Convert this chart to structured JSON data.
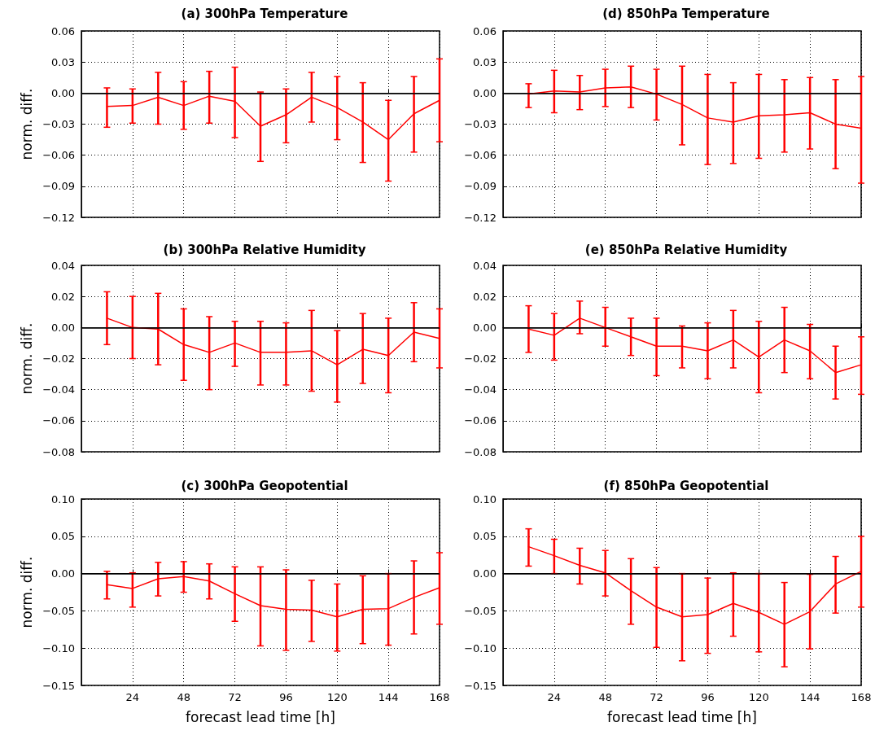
{
  "chart_data": [
    {
      "type": "line",
      "title": "(a) 300hPa Temperature",
      "ylabel": "norm. diff.",
      "tick_labels": "y",
      "grid": true,
      "marker": "none",
      "line_style": "solid",
      "xlim": [
        0,
        168
      ],
      "xticks": [
        24,
        48,
        72,
        96,
        120,
        144,
        168
      ],
      "ylim": [
        -0.12,
        0.06
      ],
      "yticks": [
        {
          "value": -0.12,
          "label": "−0.12"
        },
        {
          "value": -0.09,
          "label": "−0.09"
        },
        {
          "value": -0.06,
          "label": "−0.06"
        },
        {
          "value": -0.03,
          "label": "−0.03"
        },
        {
          "value": 0,
          "label": "0.00"
        },
        {
          "value": 0.03,
          "label": "0.03"
        },
        {
          "value": 0.06,
          "label": "0.06"
        }
      ],
      "ref_lines": [
        {
          "axis": "y",
          "value": 0,
          "color": "#000000"
        }
      ],
      "series": [
        {
          "color": "#ff0000",
          "x": [
            12,
            24,
            36,
            48,
            60,
            72,
            84,
            96,
            108,
            120,
            132,
            144,
            156,
            168
          ],
          "values": [
            -0.013,
            -0.012,
            -0.004,
            -0.012,
            -0.003,
            -0.008,
            -0.032,
            -0.021,
            -0.004,
            -0.014,
            -0.028,
            -0.045,
            -0.02,
            -0.007
          ],
          "errors": [
            [
              -0.033,
              0.005
            ],
            [
              -0.029,
              0.004
            ],
            [
              -0.03,
              0.02
            ],
            [
              -0.035,
              0.011
            ],
            [
              -0.029,
              0.021
            ],
            [
              -0.043,
              0.025
            ],
            [
              -0.066,
              0.001
            ],
            [
              -0.048,
              0.004
            ],
            [
              -0.028,
              0.02
            ],
            [
              -0.045,
              0.016
            ],
            [
              -0.067,
              0.01
            ],
            [
              -0.085,
              -0.007
            ],
            [
              -0.057,
              0.016
            ],
            [
              -0.047,
              0.033
            ]
          ]
        }
      ]
    },
    {
      "type": "line",
      "title": "(d) 850hPa Temperature",
      "tick_labels": "y",
      "grid": true,
      "marker": "none",
      "line_style": "solid",
      "xlim": [
        0,
        168
      ],
      "xticks": [
        24,
        48,
        72,
        96,
        120,
        144,
        168
      ],
      "ylim": [
        -0.12,
        0.06
      ],
      "yticks": [
        {
          "value": -0.12,
          "label": "−0.12"
        },
        {
          "value": -0.09,
          "label": "−0.09"
        },
        {
          "value": -0.06,
          "label": "−0.06"
        },
        {
          "value": -0.03,
          "label": "−0.03"
        },
        {
          "value": 0,
          "label": "0.00"
        },
        {
          "value": 0.03,
          "label": "0.03"
        },
        {
          "value": 0.06,
          "label": "0.06"
        }
      ],
      "ref_lines": [
        {
          "axis": "y",
          "value": 0,
          "color": "#000000"
        }
      ],
      "series": [
        {
          "color": "#ff0000",
          "x": [
            12,
            24,
            36,
            48,
            60,
            72,
            84,
            96,
            108,
            120,
            132,
            144,
            156,
            168
          ],
          "values": [
            -0.001,
            0.002,
            0.001,
            0.005,
            0.006,
            -0.001,
            -0.011,
            -0.024,
            -0.028,
            -0.022,
            -0.021,
            -0.019,
            -0.03,
            -0.034
          ],
          "errors": [
            [
              -0.014,
              0.009
            ],
            [
              -0.019,
              0.022
            ],
            [
              -0.016,
              0.017
            ],
            [
              -0.013,
              0.023
            ],
            [
              -0.014,
              0.026
            ],
            [
              -0.026,
              0.023
            ],
            [
              -0.05,
              0.026
            ],
            [
              -0.069,
              0.018
            ],
            [
              -0.068,
              0.01
            ],
            [
              -0.063,
              0.018
            ],
            [
              -0.057,
              0.013
            ],
            [
              -0.054,
              0.015
            ],
            [
              -0.073,
              0.013
            ],
            [
              -0.087,
              0.016
            ]
          ]
        }
      ]
    },
    {
      "type": "line",
      "title": "(b) 300hPa Relative Humidity",
      "ylabel": "norm. diff.",
      "tick_labels": "y",
      "grid": true,
      "marker": "none",
      "line_style": "solid",
      "xlim": [
        0,
        168
      ],
      "xticks": [
        24,
        48,
        72,
        96,
        120,
        144,
        168
      ],
      "ylim": [
        -0.08,
        0.04
      ],
      "yticks": [
        {
          "value": -0.08,
          "label": "−0.08"
        },
        {
          "value": -0.06,
          "label": "−0.06"
        },
        {
          "value": -0.04,
          "label": "−0.04"
        },
        {
          "value": -0.02,
          "label": "−0.02"
        },
        {
          "value": 0,
          "label": "0.00"
        },
        {
          "value": 0.02,
          "label": "0.02"
        },
        {
          "value": 0.04,
          "label": "0.04"
        }
      ],
      "ref_lines": [
        {
          "axis": "y",
          "value": 0,
          "color": "#000000"
        }
      ],
      "series": [
        {
          "color": "#ff0000",
          "x": [
            12,
            24,
            36,
            48,
            60,
            72,
            84,
            96,
            108,
            120,
            132,
            144,
            156,
            168
          ],
          "values": [
            0.006,
            0.0,
            -0.001,
            -0.011,
            -0.016,
            -0.01,
            -0.016,
            -0.016,
            -0.015,
            -0.024,
            -0.014,
            -0.018,
            -0.003,
            -0.007
          ],
          "errors": [
            [
              -0.011,
              0.023
            ],
            [
              -0.02,
              0.02
            ],
            [
              -0.024,
              0.022
            ],
            [
              -0.034,
              0.012
            ],
            [
              -0.04,
              0.007
            ],
            [
              -0.025,
              0.004
            ],
            [
              -0.037,
              0.004
            ],
            [
              -0.037,
              0.003
            ],
            [
              -0.041,
              0.011
            ],
            [
              -0.048,
              -0.002
            ],
            [
              -0.036,
              0.009
            ],
            [
              -0.042,
              0.006
            ],
            [
              -0.022,
              0.016
            ],
            [
              -0.026,
              0.012
            ]
          ]
        }
      ]
    },
    {
      "type": "line",
      "title": "(e) 850hPa Relative Humidity",
      "tick_labels": "y",
      "grid": true,
      "marker": "none",
      "line_style": "solid",
      "xlim": [
        0,
        168
      ],
      "xticks": [
        24,
        48,
        72,
        96,
        120,
        144,
        168
      ],
      "ylim": [
        -0.08,
        0.04
      ],
      "yticks": [
        {
          "value": -0.08,
          "label": "−0.08"
        },
        {
          "value": -0.06,
          "label": "−0.06"
        },
        {
          "value": -0.04,
          "label": "−0.04"
        },
        {
          "value": -0.02,
          "label": "−0.02"
        },
        {
          "value": 0,
          "label": "0.00"
        },
        {
          "value": 0.02,
          "label": "0.02"
        },
        {
          "value": 0.04,
          "label": "0.04"
        }
      ],
      "ref_lines": [
        {
          "axis": "y",
          "value": 0,
          "color": "#000000"
        }
      ],
      "series": [
        {
          "color": "#ff0000",
          "x": [
            12,
            24,
            36,
            48,
            60,
            72,
            84,
            96,
            108,
            120,
            132,
            144,
            156,
            168
          ],
          "values": [
            -0.001,
            -0.005,
            0.006,
            0.0,
            -0.006,
            -0.012,
            -0.012,
            -0.015,
            -0.008,
            -0.019,
            -0.008,
            -0.015,
            -0.029,
            -0.024
          ],
          "errors": [
            [
              -0.016,
              0.014
            ],
            [
              -0.021,
              0.009
            ],
            [
              -0.004,
              0.017
            ],
            [
              -0.012,
              0.013
            ],
            [
              -0.018,
              0.006
            ],
            [
              -0.031,
              0.006
            ],
            [
              -0.026,
              0.001
            ],
            [
              -0.033,
              0.003
            ],
            [
              -0.026,
              0.011
            ],
            [
              -0.042,
              0.004
            ],
            [
              -0.029,
              0.013
            ],
            [
              -0.033,
              0.002
            ],
            [
              -0.046,
              -0.012
            ],
            [
              -0.043,
              -0.006
            ]
          ]
        }
      ]
    },
    {
      "type": "line",
      "title": "(c) 300hPa Geopotential",
      "ylabel": "norm. diff.",
      "xlabel": "forecast lead time [h]",
      "grid": true,
      "marker": "none",
      "line_style": "solid",
      "xlim": [
        0,
        168
      ],
      "xticks": [
        24,
        48,
        72,
        96,
        120,
        144,
        168
      ],
      "ylim": [
        -0.15,
        0.1
      ],
      "yticks": [
        {
          "value": -0.15,
          "label": "−0.15"
        },
        {
          "value": -0.1,
          "label": "−0.10"
        },
        {
          "value": -0.05,
          "label": "−0.05"
        },
        {
          "value": 0,
          "label": "0.00"
        },
        {
          "value": 0.05,
          "label": "0.05"
        },
        {
          "value": 0.1,
          "label": "0.10"
        }
      ],
      "ref_lines": [
        {
          "axis": "y",
          "value": 0,
          "color": "#000000"
        }
      ],
      "series": [
        {
          "color": "#ff0000",
          "x": [
            12,
            24,
            36,
            48,
            60,
            72,
            84,
            96,
            108,
            120,
            132,
            144,
            156,
            168
          ],
          "values": [
            -0.015,
            -0.02,
            -0.007,
            -0.004,
            -0.01,
            -0.027,
            -0.043,
            -0.048,
            -0.049,
            -0.058,
            -0.048,
            -0.047,
            -0.032,
            -0.019
          ],
          "errors": [
            [
              -0.034,
              0.003
            ],
            [
              -0.045,
              0.001
            ],
            [
              -0.03,
              0.015
            ],
            [
              -0.025,
              0.016
            ],
            [
              -0.034,
              0.013
            ],
            [
              -0.064,
              0.009
            ],
            [
              -0.097,
              0.009
            ],
            [
              -0.103,
              0.005
            ],
            [
              -0.091,
              -0.009
            ],
            [
              -0.104,
              -0.014
            ],
            [
              -0.094,
              -0.003
            ],
            [
              -0.096,
              0.0
            ],
            [
              -0.081,
              0.017
            ],
            [
              -0.068,
              0.028
            ]
          ]
        }
      ]
    },
    {
      "type": "line",
      "title": "(f) 850hPa Geopotential",
      "xlabel": "forecast lead time [h]",
      "grid": true,
      "marker": "none",
      "line_style": "solid",
      "xlim": [
        0,
        168
      ],
      "xticks": [
        24,
        48,
        72,
        96,
        120,
        144,
        168
      ],
      "ylim": [
        -0.15,
        0.1
      ],
      "yticks": [
        {
          "value": -0.15,
          "label": "−0.15"
        },
        {
          "value": -0.1,
          "label": "−0.10"
        },
        {
          "value": -0.05,
          "label": "−0.05"
        },
        {
          "value": 0,
          "label": "0.00"
        },
        {
          "value": 0.05,
          "label": "0.05"
        },
        {
          "value": 0.1,
          "label": "0.10"
        }
      ],
      "ref_lines": [
        {
          "axis": "y",
          "value": 0,
          "color": "#000000"
        }
      ],
      "series": [
        {
          "color": "#ff0000",
          "x": [
            12,
            24,
            36,
            48,
            60,
            72,
            84,
            96,
            108,
            120,
            132,
            144,
            156,
            168
          ],
          "values": [
            0.036,
            0.024,
            0.011,
            0.001,
            -0.023,
            -0.045,
            -0.058,
            -0.055,
            -0.04,
            -0.052,
            -0.068,
            -0.051,
            -0.014,
            0.003
          ],
          "errors": [
            [
              0.01,
              0.06
            ],
            [
              0.0,
              0.046
            ],
            [
              -0.014,
              0.034
            ],
            [
              -0.03,
              0.031
            ],
            [
              -0.068,
              0.02
            ],
            [
              -0.099,
              0.008
            ],
            [
              -0.117,
              0.0
            ],
            [
              -0.107,
              -0.006
            ],
            [
              -0.084,
              0.001
            ],
            [
              -0.105,
              0.0
            ],
            [
              -0.125,
              -0.012
            ],
            [
              -0.101,
              -0.001
            ],
            [
              -0.053,
              0.023
            ],
            [
              -0.045,
              0.05
            ]
          ]
        }
      ]
    }
  ]
}
